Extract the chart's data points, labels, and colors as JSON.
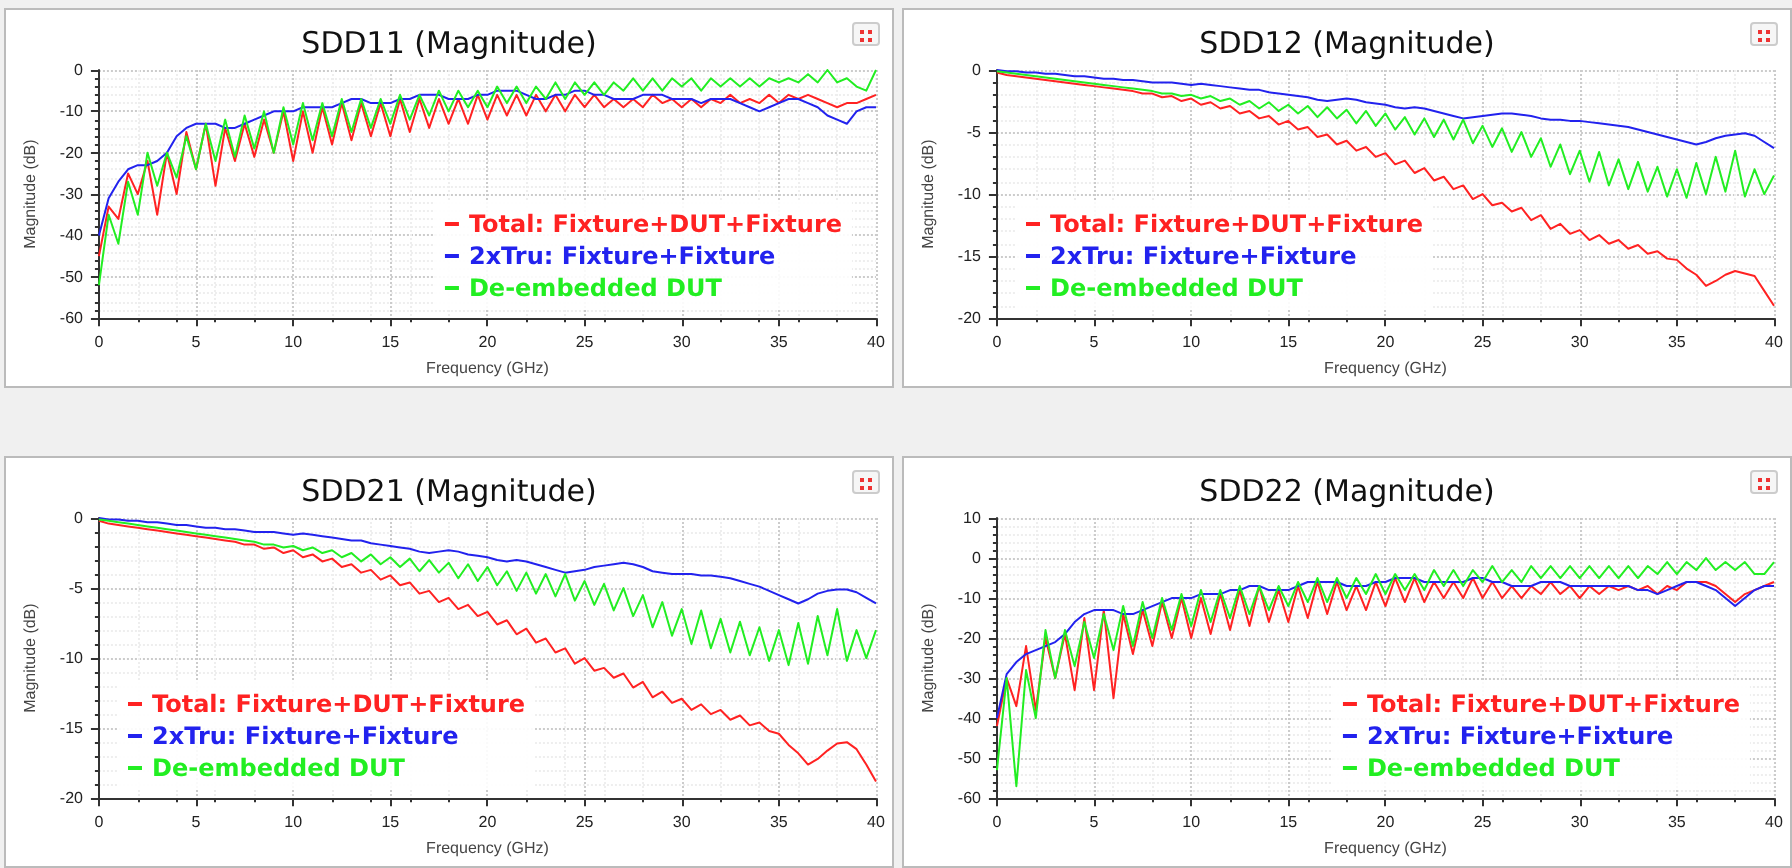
{
  "chart_data": [
    {
      "type": "line",
      "title": "SDD11 (Magnitude)",
      "xlabel": "Frequency (GHz)",
      "ylabel": "Magnitude (dB)",
      "xlim": [
        0,
        40
      ],
      "xticks": [
        0,
        5,
        10,
        15,
        20,
        25,
        30,
        35,
        40
      ],
      "ylim": [
        -60,
        0
      ],
      "yticks": [
        -60,
        -50,
        -40,
        -30,
        -20,
        -10,
        0
      ],
      "grid": true,
      "legend": "bottom right",
      "x": [
        0,
        0.5,
        1,
        1.5,
        2,
        2.5,
        3,
        3.5,
        4,
        4.5,
        5,
        5.5,
        6,
        6.5,
        7,
        7.5,
        8,
        8.5,
        9,
        9.5,
        10,
        10.5,
        11,
        11.5,
        12,
        12.5,
        13,
        13.5,
        14,
        14.5,
        15,
        15.5,
        16,
        16.5,
        17,
        17.5,
        18,
        18.5,
        19,
        19.5,
        20,
        20.5,
        21,
        21.5,
        22,
        22.5,
        23,
        23.5,
        24,
        24.5,
        25,
        25.5,
        26,
        26.5,
        27,
        27.5,
        28,
        28.5,
        29,
        29.5,
        30,
        30.5,
        31,
        31.5,
        32,
        32.5,
        33,
        33.5,
        34,
        34.5,
        35,
        35.5,
        36,
        36.5,
        37,
        37.5,
        38,
        38.5,
        39,
        39.5,
        40
      ],
      "series": [
        {
          "name": "Total: Fixture+DUT+Fixture",
          "color": "#ff2222",
          "values": [
            -45,
            -33,
            -36,
            -25,
            -30,
            -22,
            -35,
            -20,
            -30,
            -15,
            -24,
            -13,
            -28,
            -14,
            -22,
            -13,
            -21,
            -12,
            -20,
            -10,
            -22,
            -10,
            -20,
            -9,
            -18,
            -8,
            -17,
            -8,
            -16,
            -8,
            -16,
            -7,
            -15,
            -7,
            -14,
            -7,
            -13,
            -7,
            -13,
            -6,
            -12,
            -6,
            -11,
            -6,
            -11,
            -6,
            -10,
            -6,
            -10,
            -6,
            -9,
            -6,
            -9,
            -7,
            -9,
            -7,
            -9,
            -6,
            -8,
            -7,
            -9,
            -7,
            -9,
            -7,
            -8,
            -6,
            -8,
            -7,
            -8,
            -6,
            -8,
            -6,
            -7,
            -6,
            -7,
            -8,
            -9,
            -8,
            -8,
            -7,
            -6
          ]
        },
        {
          "name": "2xTru: Fixture+Fixture",
          "color": "#2222ee",
          "values": [
            -40,
            -31,
            -27,
            -24,
            -23,
            -23,
            -22,
            -20,
            -16,
            -14,
            -13,
            -13,
            -13,
            -14,
            -14,
            -13,
            -12,
            -11,
            -10,
            -10,
            -10,
            -9,
            -9,
            -9,
            -9,
            -8,
            -7,
            -7,
            -8,
            -8,
            -8,
            -7,
            -7,
            -6,
            -6,
            -6,
            -7,
            -7,
            -7,
            -6,
            -6,
            -5,
            -5,
            -5,
            -6,
            -7,
            -7,
            -6,
            -6,
            -5,
            -5,
            -6,
            -6,
            -7,
            -7,
            -7,
            -6,
            -6,
            -6,
            -7,
            -7,
            -7,
            -8,
            -7,
            -7,
            -7,
            -8,
            -9,
            -10,
            -9,
            -8,
            -7,
            -7,
            -8,
            -9,
            -11,
            -12,
            -13,
            -10,
            -9,
            -9
          ]
        },
        {
          "name": "De-embedded DUT",
          "color": "#22ee22",
          "values": [
            -52,
            -35,
            -42,
            -27,
            -35,
            -20,
            -28,
            -20,
            -26,
            -16,
            -24,
            -13,
            -22,
            -12,
            -21,
            -11,
            -19,
            -10,
            -20,
            -9,
            -18,
            -8,
            -17,
            -8,
            -16,
            -7,
            -15,
            -7,
            -14,
            -7,
            -13,
            -6,
            -12,
            -6,
            -11,
            -5,
            -10,
            -5,
            -9,
            -5,
            -9,
            -4,
            -8,
            -4,
            -8,
            -4,
            -7,
            -3,
            -7,
            -3,
            -6,
            -3,
            -6,
            -3,
            -5,
            -2,
            -5,
            -2,
            -5,
            -2,
            -4,
            -2,
            -5,
            -2,
            -4,
            -2,
            -4,
            -2,
            -4,
            -2,
            -3,
            -2,
            -3,
            -1,
            -3,
            0,
            -3,
            -2,
            -4,
            -5,
            0
          ]
        }
      ]
    },
    {
      "type": "line",
      "title": "SDD12 (Magnitude)",
      "xlabel": "Frequency (GHz)",
      "ylabel": "Magnitude (dB)",
      "xlim": [
        0,
        40
      ],
      "xticks": [
        0,
        5,
        10,
        15,
        20,
        25,
        30,
        35,
        40
      ],
      "ylim": [
        -20,
        0
      ],
      "yticks": [
        -20,
        -15,
        -10,
        -5,
        0
      ],
      "grid": true,
      "legend": "bottom left",
      "x": [
        0,
        0.5,
        1,
        1.5,
        2,
        2.5,
        3,
        3.5,
        4,
        4.5,
        5,
        5.5,
        6,
        6.5,
        7,
        7.5,
        8,
        8.5,
        9,
        9.5,
        10,
        10.5,
        11,
        11.5,
        12,
        12.5,
        13,
        13.5,
        14,
        14.5,
        15,
        15.5,
        16,
        16.5,
        17,
        17.5,
        18,
        18.5,
        19,
        19.5,
        20,
        20.5,
        21,
        21.5,
        22,
        22.5,
        23,
        23.5,
        24,
        24.5,
        25,
        25.5,
        26,
        26.5,
        27,
        27.5,
        28,
        28.5,
        29,
        29.5,
        30,
        30.5,
        31,
        31.5,
        32,
        32.5,
        33,
        33.5,
        34,
        34.5,
        35,
        35.5,
        36,
        36.5,
        37,
        37.5,
        38,
        38.5,
        39,
        39.5,
        40
      ],
      "series": [
        {
          "name": "Total: Fixture+DUT+Fixture",
          "color": "#ff2222",
          "values": [
            -0.2,
            -0.4,
            -0.5,
            -0.6,
            -0.7,
            -0.8,
            -0.9,
            -1.0,
            -1.1,
            -1.2,
            -1.3,
            -1.4,
            -1.5,
            -1.6,
            -1.7,
            -1.9,
            -1.9,
            -2.2,
            -2.1,
            -2.5,
            -2.3,
            -2.8,
            -2.6,
            -3.1,
            -2.9,
            -3.5,
            -3.3,
            -3.9,
            -3.7,
            -4.4,
            -4.1,
            -4.8,
            -4.6,
            -5.4,
            -5.2,
            -6.0,
            -5.7,
            -6.5,
            -6.2,
            -7.0,
            -6.7,
            -7.6,
            -7.3,
            -8.3,
            -7.9,
            -8.9,
            -8.6,
            -9.6,
            -9.3,
            -10.4,
            -10.0,
            -10.9,
            -10.7,
            -11.4,
            -11.1,
            -12.1,
            -11.7,
            -12.8,
            -12.4,
            -13.2,
            -12.9,
            -13.7,
            -13.3,
            -14.0,
            -13.7,
            -14.4,
            -14.1,
            -14.8,
            -14.6,
            -15.2,
            -15.3,
            -16.0,
            -16.5,
            -17.4,
            -17.0,
            -16.5,
            -16.2,
            -16.4,
            -16.6,
            -17.8,
            -19.0
          ]
        },
        {
          "name": "2xTru: Fixture+Fixture",
          "color": "#2222ee",
          "values": [
            0,
            -0.1,
            -0.1,
            -0.2,
            -0.2,
            -0.3,
            -0.3,
            -0.4,
            -0.5,
            -0.5,
            -0.6,
            -0.7,
            -0.7,
            -0.8,
            -0.8,
            -0.9,
            -1.0,
            -1.0,
            -1.0,
            -1.1,
            -1.2,
            -1.1,
            -1.2,
            -1.3,
            -1.4,
            -1.5,
            -1.6,
            -1.6,
            -1.8,
            -1.9,
            -2.0,
            -2.1,
            -2.2,
            -2.4,
            -2.5,
            -2.4,
            -2.3,
            -2.4,
            -2.6,
            -2.7,
            -2.8,
            -3.0,
            -3.1,
            -3.0,
            -3.1,
            -3.3,
            -3.5,
            -3.7,
            -3.9,
            -3.8,
            -3.7,
            -3.6,
            -3.5,
            -3.5,
            -3.6,
            -3.7,
            -3.9,
            -4.0,
            -4.0,
            -4.1,
            -4.1,
            -4.2,
            -4.3,
            -4.4,
            -4.5,
            -4.6,
            -4.8,
            -5.0,
            -5.2,
            -5.4,
            -5.6,
            -5.8,
            -6.0,
            -5.8,
            -5.5,
            -5.3,
            -5.2,
            -5.1,
            -5.3,
            -5.8,
            -6.3
          ]
        },
        {
          "name": "De-embedded DUT",
          "color": "#22ee22",
          "values": [
            -0.1,
            -0.2,
            -0.3,
            -0.4,
            -0.5,
            -0.6,
            -0.7,
            -0.8,
            -0.9,
            -1.0,
            -1.1,
            -1.2,
            -1.3,
            -1.4,
            -1.5,
            -1.6,
            -1.7,
            -1.9,
            -1.9,
            -2.1,
            -2.0,
            -2.3,
            -2.1,
            -2.5,
            -2.3,
            -2.8,
            -2.5,
            -3.1,
            -2.6,
            -3.3,
            -2.8,
            -3.5,
            -2.9,
            -3.8,
            -3.0,
            -3.9,
            -3.2,
            -4.3,
            -3.3,
            -4.5,
            -3.5,
            -4.8,
            -3.8,
            -5.2,
            -3.9,
            -5.4,
            -4.0,
            -5.6,
            -4.0,
            -5.9,
            -4.5,
            -6.2,
            -4.7,
            -6.6,
            -5.0,
            -7.0,
            -5.5,
            -7.8,
            -6.0,
            -8.4,
            -6.5,
            -9.0,
            -6.6,
            -9.3,
            -7.2,
            -9.6,
            -7.4,
            -9.8,
            -7.8,
            -10.2,
            -8.0,
            -10.3,
            -7.5,
            -10.0,
            -7.0,
            -9.8,
            -6.5,
            -10.2,
            -8.0,
            -10.0,
            -8.5
          ]
        }
      ]
    },
    {
      "type": "line",
      "title": "SDD21 (Magnitude)",
      "xlabel": "Frequency (GHz)",
      "ylabel": "Magnitude (dB)",
      "xlim": [
        0,
        40
      ],
      "xticks": [
        0,
        5,
        10,
        15,
        20,
        25,
        30,
        35,
        40
      ],
      "ylim": [
        -20,
        0
      ],
      "yticks": [
        -20,
        -15,
        -10,
        -5,
        0
      ],
      "grid": true,
      "legend": "bottom left",
      "x": [
        0,
        0.5,
        1,
        1.5,
        2,
        2.5,
        3,
        3.5,
        4,
        4.5,
        5,
        5.5,
        6,
        6.5,
        7,
        7.5,
        8,
        8.5,
        9,
        9.5,
        10,
        10.5,
        11,
        11.5,
        12,
        12.5,
        13,
        13.5,
        14,
        14.5,
        15,
        15.5,
        16,
        16.5,
        17,
        17.5,
        18,
        18.5,
        19,
        19.5,
        20,
        20.5,
        21,
        21.5,
        22,
        22.5,
        23,
        23.5,
        24,
        24.5,
        25,
        25.5,
        26,
        26.5,
        27,
        27.5,
        28,
        28.5,
        29,
        29.5,
        30,
        30.5,
        31,
        31.5,
        32,
        32.5,
        33,
        33.5,
        34,
        34.5,
        35,
        35.5,
        36,
        36.5,
        37,
        37.5,
        38,
        38.5,
        39,
        39.5,
        40
      ],
      "series": [
        {
          "name": "Total: Fixture+DUT+Fixture",
          "color": "#ff2222",
          "values": [
            -0.2,
            -0.4,
            -0.5,
            -0.6,
            -0.7,
            -0.8,
            -0.9,
            -1.0,
            -1.1,
            -1.2,
            -1.3,
            -1.4,
            -1.5,
            -1.6,
            -1.7,
            -1.9,
            -1.9,
            -2.2,
            -2.1,
            -2.5,
            -2.3,
            -2.8,
            -2.6,
            -3.1,
            -2.9,
            -3.5,
            -3.3,
            -3.9,
            -3.7,
            -4.4,
            -4.1,
            -4.8,
            -4.6,
            -5.4,
            -5.2,
            -6.0,
            -5.7,
            -6.5,
            -6.2,
            -7.0,
            -6.7,
            -7.6,
            -7.3,
            -8.3,
            -7.9,
            -8.9,
            -8.6,
            -9.6,
            -9.3,
            -10.4,
            -10.0,
            -10.9,
            -10.7,
            -11.4,
            -11.1,
            -12.1,
            -11.7,
            -12.8,
            -12.4,
            -13.2,
            -12.9,
            -13.7,
            -13.3,
            -14.0,
            -13.7,
            -14.4,
            -14.1,
            -14.8,
            -14.6,
            -15.2,
            -15.4,
            -16.2,
            -16.8,
            -17.6,
            -17.2,
            -16.6,
            -16.1,
            -16.0,
            -16.5,
            -17.6,
            -18.8
          ]
        },
        {
          "name": "2xTru: Fixture+Fixture",
          "color": "#2222ee",
          "values": [
            0,
            -0.1,
            -0.1,
            -0.2,
            -0.2,
            -0.3,
            -0.3,
            -0.4,
            -0.5,
            -0.5,
            -0.6,
            -0.7,
            -0.7,
            -0.8,
            -0.8,
            -0.9,
            -1.0,
            -1.0,
            -1.0,
            -1.1,
            -1.2,
            -1.1,
            -1.2,
            -1.3,
            -1.4,
            -1.5,
            -1.6,
            -1.6,
            -1.8,
            -1.9,
            -2.0,
            -2.1,
            -2.2,
            -2.4,
            -2.5,
            -2.4,
            -2.3,
            -2.4,
            -2.6,
            -2.7,
            -2.8,
            -3.0,
            -3.1,
            -3.0,
            -3.1,
            -3.3,
            -3.5,
            -3.7,
            -3.9,
            -3.8,
            -3.7,
            -3.5,
            -3.4,
            -3.3,
            -3.2,
            -3.3,
            -3.5,
            -3.8,
            -3.9,
            -4.0,
            -4.0,
            -4.0,
            -4.1,
            -4.1,
            -4.2,
            -4.3,
            -4.5,
            -4.7,
            -4.9,
            -5.2,
            -5.5,
            -5.8,
            -6.1,
            -5.8,
            -5.4,
            -5.2,
            -5.1,
            -5.1,
            -5.3,
            -5.7,
            -6.1
          ]
        },
        {
          "name": "De-embedded DUT",
          "color": "#22ee22",
          "values": [
            -0.1,
            -0.2,
            -0.3,
            -0.4,
            -0.5,
            -0.6,
            -0.7,
            -0.8,
            -0.9,
            -1.0,
            -1.1,
            -1.2,
            -1.3,
            -1.4,
            -1.5,
            -1.6,
            -1.7,
            -1.9,
            -1.9,
            -2.1,
            -2.0,
            -2.3,
            -2.1,
            -2.5,
            -2.3,
            -2.8,
            -2.5,
            -3.1,
            -2.6,
            -3.3,
            -2.8,
            -3.5,
            -2.9,
            -3.8,
            -3.0,
            -3.9,
            -3.2,
            -4.3,
            -3.3,
            -4.5,
            -3.5,
            -4.8,
            -3.8,
            -5.2,
            -3.9,
            -5.4,
            -4.0,
            -5.6,
            -4.0,
            -5.9,
            -4.5,
            -6.2,
            -4.7,
            -6.6,
            -5.0,
            -7.0,
            -5.5,
            -7.8,
            -6.0,
            -8.4,
            -6.5,
            -9.0,
            -6.6,
            -9.3,
            -7.2,
            -9.6,
            -7.4,
            -9.8,
            -7.8,
            -10.2,
            -8.0,
            -10.5,
            -7.5,
            -10.4,
            -7.0,
            -9.8,
            -6.5,
            -10.2,
            -8.0,
            -10.0,
            -8.0
          ]
        }
      ]
    },
    {
      "type": "line",
      "title": "SDD22 (Magnitude)",
      "xlabel": "Frequency (GHz)",
      "ylabel": "Magnitude (dB)",
      "xlim": [
        0,
        40
      ],
      "xticks": [
        0,
        5,
        10,
        15,
        20,
        25,
        30,
        35,
        40
      ],
      "ylim": [
        -60,
        10
      ],
      "yticks": [
        -60,
        -50,
        -40,
        -30,
        -20,
        -10,
        0,
        10
      ],
      "grid": true,
      "legend": "bottom right",
      "x": [
        0,
        0.5,
        1,
        1.5,
        2,
        2.5,
        3,
        3.5,
        4,
        4.5,
        5,
        5.5,
        6,
        6.5,
        7,
        7.5,
        8,
        8.5,
        9,
        9.5,
        10,
        10.5,
        11,
        11.5,
        12,
        12.5,
        13,
        13.5,
        14,
        14.5,
        15,
        15.5,
        16,
        16.5,
        17,
        17.5,
        18,
        18.5,
        19,
        19.5,
        20,
        20.5,
        21,
        21.5,
        22,
        22.5,
        23,
        23.5,
        24,
        24.5,
        25,
        25.5,
        26,
        26.5,
        27,
        27.5,
        28,
        28.5,
        29,
        29.5,
        30,
        30.5,
        31,
        31.5,
        32,
        32.5,
        33,
        33.5,
        34,
        34.5,
        35,
        35.5,
        36,
        36.5,
        37,
        37.5,
        38,
        38.5,
        39,
        39.5,
        40
      ],
      "series": [
        {
          "name": "Total: Fixture+DUT+Fixture",
          "color": "#ff2222",
          "values": [
            -42,
            -30,
            -37,
            -22,
            -38,
            -20,
            -30,
            -19,
            -33,
            -15,
            -33,
            -13,
            -35,
            -14,
            -24,
            -13,
            -22,
            -11,
            -20,
            -10,
            -20,
            -10,
            -19,
            -9,
            -18,
            -8,
            -17,
            -7,
            -16,
            -8,
            -16,
            -7,
            -15,
            -6,
            -14,
            -6,
            -13,
            -7,
            -13,
            -6,
            -12,
            -5,
            -11,
            -5,
            -11,
            -6,
            -10,
            -6,
            -10,
            -5,
            -10,
            -6,
            -10,
            -7,
            -10,
            -7,
            -9,
            -6,
            -9,
            -7,
            -10,
            -7,
            -9,
            -7,
            -8,
            -7,
            -8,
            -7,
            -9,
            -7,
            -8,
            -6,
            -6,
            -6,
            -7,
            -9,
            -11,
            -9,
            -8,
            -7,
            -6
          ]
        },
        {
          "name": "2xTru: Fixture+Fixture",
          "color": "#2222ee",
          "values": [
            -40,
            -29,
            -26,
            -24,
            -23,
            -22,
            -21,
            -19,
            -16,
            -14,
            -13,
            -13,
            -13,
            -14,
            -14,
            -13,
            -12,
            -11,
            -10,
            -10,
            -10,
            -9,
            -9,
            -9,
            -8,
            -8,
            -7,
            -7,
            -8,
            -8,
            -8,
            -7,
            -6,
            -6,
            -6,
            -6,
            -7,
            -7,
            -7,
            -6,
            -6,
            -5,
            -5,
            -5,
            -6,
            -6,
            -6,
            -6,
            -6,
            -5,
            -5,
            -6,
            -6,
            -7,
            -7,
            -7,
            -6,
            -6,
            -6,
            -7,
            -7,
            -7,
            -7,
            -7,
            -7,
            -7,
            -8,
            -8,
            -9,
            -8,
            -7,
            -6,
            -6,
            -7,
            -8,
            -10,
            -12,
            -10,
            -8,
            -7,
            -7
          ]
        },
        {
          "name": "De-embedded DUT",
          "color": "#22ee22",
          "values": [
            -53,
            -30,
            -57,
            -28,
            -40,
            -18,
            -30,
            -18,
            -27,
            -16,
            -25,
            -14,
            -23,
            -12,
            -22,
            -11,
            -20,
            -10,
            -18,
            -9,
            -17,
            -8,
            -16,
            -8,
            -15,
            -7,
            -14,
            -7,
            -13,
            -7,
            -12,
            -6,
            -11,
            -5,
            -11,
            -5,
            -10,
            -5,
            -9,
            -4,
            -9,
            -4,
            -8,
            -4,
            -8,
            -3,
            -7,
            -3,
            -7,
            -3,
            -6,
            -2,
            -6,
            -3,
            -6,
            -2,
            -5,
            -2,
            -5,
            -2,
            -5,
            -2,
            -5,
            -2,
            -5,
            -2,
            -5,
            -2,
            -4,
            -1,
            -4,
            -1,
            -3,
            0,
            -3,
            -1,
            -3,
            -1,
            -4,
            -4,
            -1
          ]
        }
      ]
    }
  ]
}
